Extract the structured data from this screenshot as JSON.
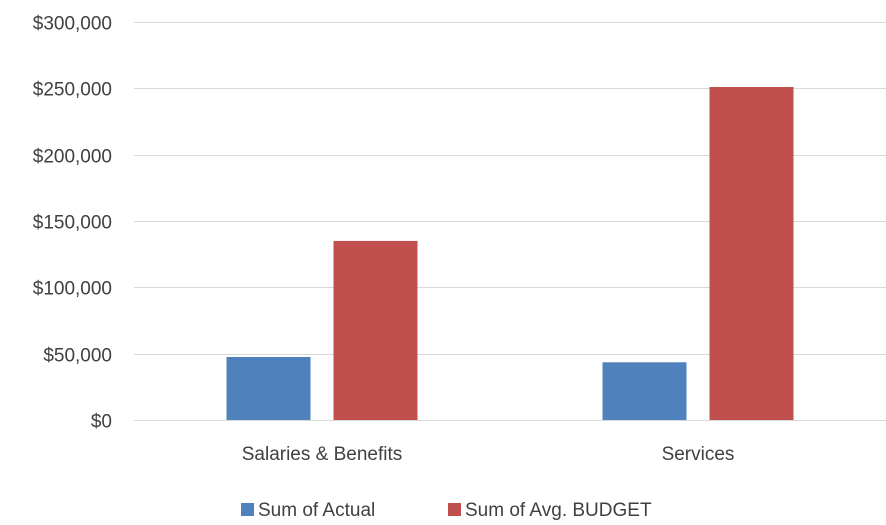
{
  "chart_data": {
    "type": "bar",
    "categories": [
      "Salaries & Benefits",
      "Services"
    ],
    "series": [
      {
        "name": "Sum of Actual",
        "values": [
          47500,
          43500
        ],
        "color": "#4f81bd"
      },
      {
        "name": "Sum of Avg. BUDGET",
        "values": [
          135000,
          251000
        ],
        "color": "#c0504d"
      }
    ],
    "ylim": [
      0,
      300000
    ],
    "yticks": [
      0,
      50000,
      100000,
      150000,
      200000,
      250000,
      300000
    ],
    "ytick_labels": [
      "$0",
      "$50,000",
      "$100,000",
      "$150,000",
      "$200,000",
      "$250,000",
      "$300,000"
    ],
    "grid": true,
    "gridline_color": "#d9d9d9",
    "legend_position": "bottom-center",
    "title": "",
    "xlabel": "",
    "ylabel": ""
  }
}
